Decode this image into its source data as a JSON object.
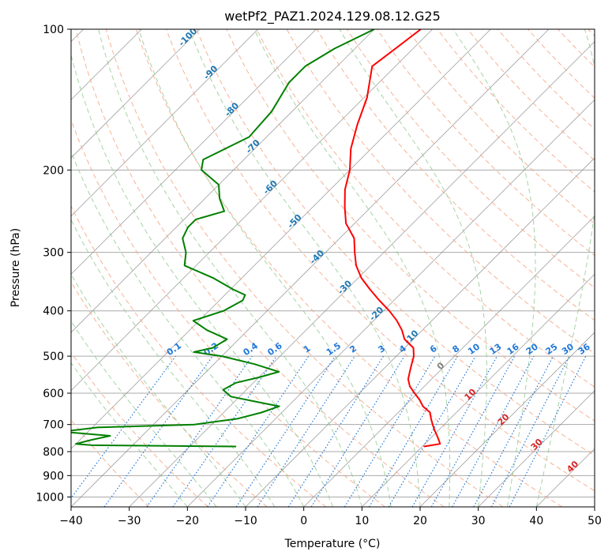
{
  "chart_data": {
    "type": "line",
    "title": "wetPf2_PAZ1.2024.129.08.12.G25",
    "xlabel": "Temperature (°C)",
    "ylabel": "Pressure (hPa)",
    "xlim": [
      -40,
      50
    ],
    "ylim": [
      1050,
      100
    ],
    "y_scale": "log",
    "skew_degrees": 45,
    "x_ticks": [
      -40,
      -30,
      -20,
      -10,
      0,
      10,
      20,
      30,
      40,
      50
    ],
    "y_ticks": [
      100,
      200,
      300,
      400,
      500,
      600,
      700,
      800,
      900,
      1000
    ],
    "grid": true,
    "series": [
      {
        "color": "#ff0000",
        "points": [
          [
            100,
            -62.0
          ],
          [
            120,
            -64.0
          ],
          [
            140,
            -59.5
          ],
          [
            160,
            -56.5
          ],
          [
            180,
            -53.5
          ],
          [
            200,
            -50.0
          ],
          [
            220,
            -47.5
          ],
          [
            240,
            -44.5
          ],
          [
            260,
            -41.5
          ],
          [
            280,
            -37.5
          ],
          [
            300,
            -35.0
          ],
          [
            320,
            -32.5
          ],
          [
            340,
            -29.5
          ],
          [
            360,
            -26.0
          ],
          [
            380,
            -22.5
          ],
          [
            400,
            -19.0
          ],
          [
            420,
            -16.0
          ],
          [
            440,
            -13.5
          ],
          [
            460,
            -11.5
          ],
          [
            480,
            -8.5
          ],
          [
            500,
            -7.0
          ],
          [
            520,
            -6.0
          ],
          [
            540,
            -5.0
          ],
          [
            560,
            -4.0
          ],
          [
            580,
            -2.5
          ],
          [
            600,
            -0.5
          ],
          [
            620,
            1.5
          ],
          [
            640,
            3.2
          ],
          [
            660,
            5.5
          ],
          [
            680,
            6.7
          ],
          [
            700,
            8.0
          ],
          [
            720,
            9.3
          ],
          [
            740,
            10.7
          ],
          [
            760,
            12.0
          ],
          [
            770,
            12.6
          ],
          [
            780,
            10.3
          ]
        ]
      },
      {
        "color": "#008000",
        "points": [
          [
            100,
            -70.0
          ],
          [
            110,
            -73.5
          ],
          [
            120,
            -75.5
          ],
          [
            130,
            -75.5
          ],
          [
            150,
            -73.5
          ],
          [
            170,
            -73.0
          ],
          [
            190,
            -77.0
          ],
          [
            200,
            -75.5
          ],
          [
            215,
            -70.0
          ],
          [
            230,
            -67.5
          ],
          [
            245,
            -64.5
          ],
          [
            255,
            -68.0
          ],
          [
            265,
            -68.0
          ],
          [
            280,
            -67.0
          ],
          [
            300,
            -64.0
          ],
          [
            320,
            -62.0
          ],
          [
            340,
            -55.0
          ],
          [
            360,
            -49.5
          ],
          [
            370,
            -46.5
          ],
          [
            380,
            -46.0
          ],
          [
            400,
            -47.5
          ],
          [
            420,
            -51.0
          ],
          [
            440,
            -47.0
          ],
          [
            460,
            -42.0
          ],
          [
            480,
            -43.0
          ],
          [
            490,
            -45.5
          ],
          [
            500,
            -40.0
          ],
          [
            520,
            -33.0
          ],
          [
            540,
            -27.5
          ],
          [
            555,
            -30.0
          ],
          [
            570,
            -33.0
          ],
          [
            590,
            -34.0
          ],
          [
            610,
            -31.5
          ],
          [
            625,
            -26.5
          ],
          [
            640,
            -21.5
          ],
          [
            660,
            -23.5
          ],
          [
            680,
            -26.5
          ],
          [
            700,
            -33.0
          ],
          [
            710,
            -49.0
          ],
          [
            725,
            -54.5
          ],
          [
            740,
            -45.5
          ],
          [
            755,
            -48.0
          ],
          [
            770,
            -50.0
          ],
          [
            775,
            -47.0
          ],
          [
            780,
            -22.0
          ]
        ]
      }
    ],
    "dry_adiabat_labels": [
      "-100",
      "-90",
      "-80",
      "-70",
      "-60",
      "-50",
      "-40",
      "-30",
      "-20",
      "-10",
      "0",
      "10",
      "20",
      "30",
      "40"
    ],
    "mixing_ratio_labels": [
      "0.1",
      "0.2",
      "0.4",
      "0.6",
      "1",
      "1.5",
      "2",
      "3",
      "4",
      "6",
      "8",
      "10",
      "13",
      "16",
      "20",
      "25",
      "30",
      "36"
    ]
  },
  "colors": {
    "temperature": "#ff0000",
    "dewpoint": "#008000",
    "dry_adiabat": "#f4a582",
    "moist_adiabat": "#8fc88f",
    "mixing_ratio": "#1f78d9",
    "isotherm": "#888888",
    "isobar": "#aaaaaa",
    "iso_label_blue": "#1f77b4",
    "iso_label_red": "#d62728",
    "iso_label_gray": "#7f7f7f"
  }
}
